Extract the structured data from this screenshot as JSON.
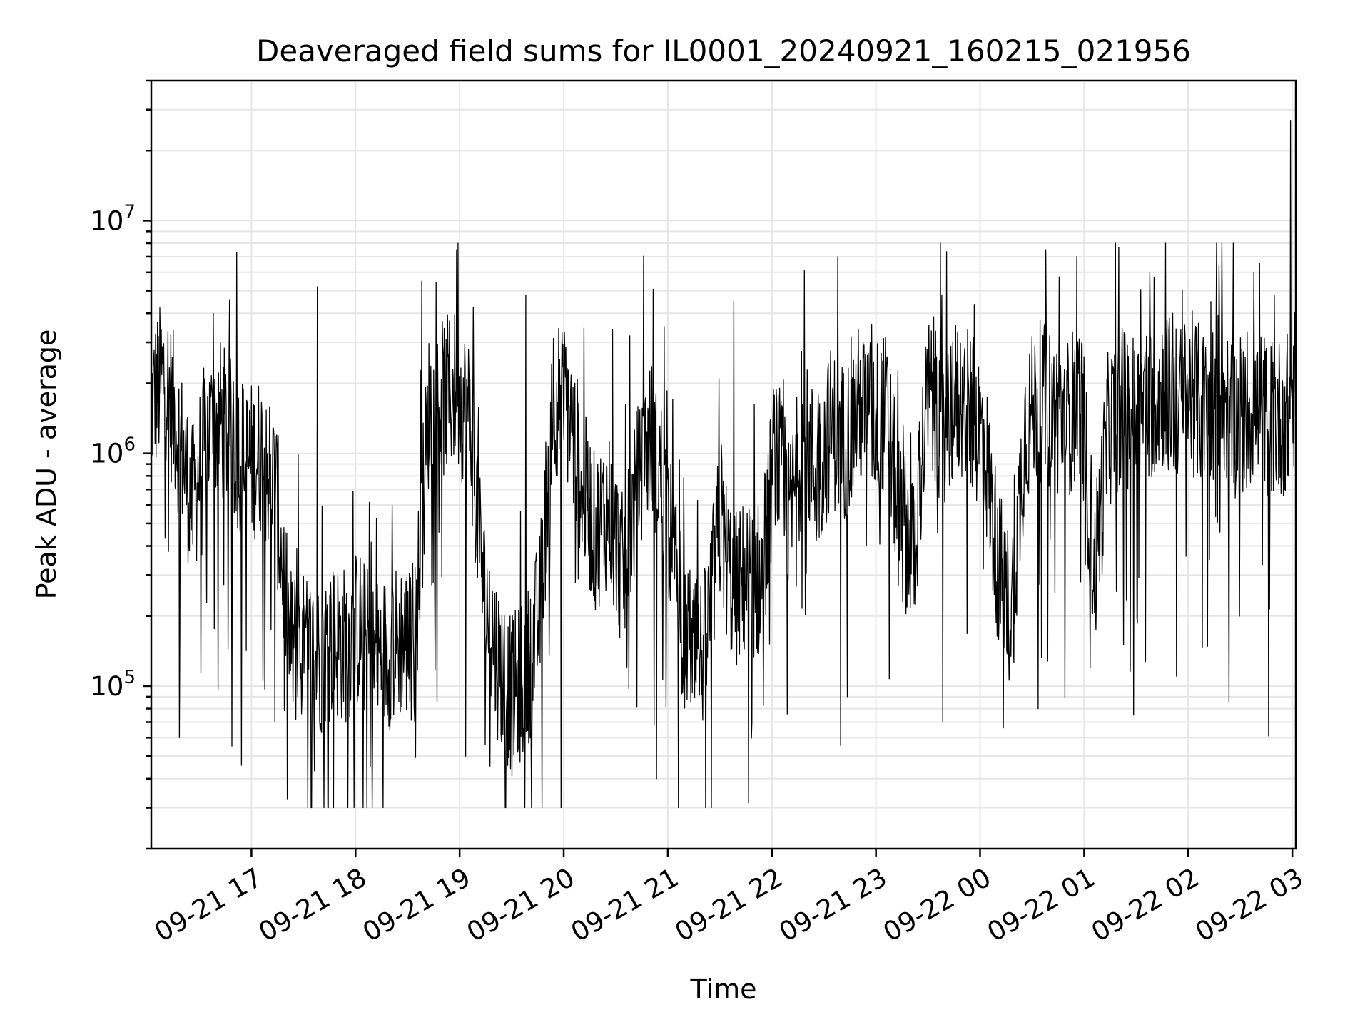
{
  "chart_data": {
    "type": "line",
    "title": "Deaveraged field sums for IL0001_20240921_160215_021956",
    "xlabel": "Time",
    "ylabel": "Peak ADU - average",
    "yscale": "log",
    "xlim": [
      "2024-09-21 16:02:15",
      "2024-09-22 03:02:00"
    ],
    "ylim": [
      20000,
      40000000
    ],
    "grid": true,
    "x_ticks": [
      {
        "value": "2024-09-21 17:00",
        "label": "09-21 17"
      },
      {
        "value": "2024-09-21 18:00",
        "label": "09-21 18"
      },
      {
        "value": "2024-09-21 19:00",
        "label": "09-21 19"
      },
      {
        "value": "2024-09-21 20:00",
        "label": "09-21 20"
      },
      {
        "value": "2024-09-21 21:00",
        "label": "09-21 21"
      },
      {
        "value": "2024-09-21 22:00",
        "label": "09-21 22"
      },
      {
        "value": "2024-09-21 23:00",
        "label": "09-21 23"
      },
      {
        "value": "2024-09-22 00:00",
        "label": "09-22 00"
      },
      {
        "value": "2024-09-22 01:00",
        "label": "09-22 01"
      },
      {
        "value": "2024-09-22 02:00",
        "label": "09-22 02"
      },
      {
        "value": "2024-09-22 03:00",
        "label": "09-22 03"
      }
    ],
    "y_ticks": [
      {
        "value": 100000,
        "base": "10",
        "exp": "5"
      },
      {
        "value": 1000000,
        "base": "10",
        "exp": "6"
      },
      {
        "value": 10000000,
        "base": "10",
        "exp": "7"
      }
    ],
    "series": [
      {
        "color": "#000000",
        "x": [
          "2024-09-21 16:02",
          "2024-09-21 16:10",
          "2024-09-21 16:18",
          "2024-09-21 16:26",
          "2024-09-21 16:34",
          "2024-09-21 16:42",
          "2024-09-21 16:50",
          "2024-09-21 16:58",
          "2024-09-21 17:06",
          "2024-09-21 17:14",
          "2024-09-21 17:22",
          "2024-09-21 17:30",
          "2024-09-21 17:38",
          "2024-09-21 17:46",
          "2024-09-21 17:54",
          "2024-09-21 18:02",
          "2024-09-21 18:10",
          "2024-09-21 18:18",
          "2024-09-21 18:26",
          "2024-09-21 18:34",
          "2024-09-21 18:42",
          "2024-09-21 18:50",
          "2024-09-21 18:58",
          "2024-09-21 19:06",
          "2024-09-21 19:14",
          "2024-09-21 19:22",
          "2024-09-21 19:30",
          "2024-09-21 19:38",
          "2024-09-21 19:46",
          "2024-09-21 19:54",
          "2024-09-21 20:02",
          "2024-09-21 20:10",
          "2024-09-21 20:18",
          "2024-09-21 20:26",
          "2024-09-21 20:34",
          "2024-09-21 20:42",
          "2024-09-21 20:50",
          "2024-09-21 20:58",
          "2024-09-21 21:06",
          "2024-09-21 21:14",
          "2024-09-21 21:22",
          "2024-09-21 21:30",
          "2024-09-21 21:38",
          "2024-09-21 21:46",
          "2024-09-21 21:54",
          "2024-09-21 22:02",
          "2024-09-21 22:10",
          "2024-09-21 22:18",
          "2024-09-21 22:26",
          "2024-09-21 22:34",
          "2024-09-21 22:42",
          "2024-09-21 22:50",
          "2024-09-21 22:58",
          "2024-09-21 23:06",
          "2024-09-21 23:14",
          "2024-09-21 23:22",
          "2024-09-21 23:30",
          "2024-09-21 23:38",
          "2024-09-21 23:46",
          "2024-09-21 23:54",
          "2024-09-22 00:02",
          "2024-09-22 00:10",
          "2024-09-22 00:18",
          "2024-09-22 00:26",
          "2024-09-22 00:34",
          "2024-09-22 00:42",
          "2024-09-22 00:50",
          "2024-09-22 00:58",
          "2024-09-22 01:06",
          "2024-09-22 01:14",
          "2024-09-22 01:22",
          "2024-09-22 01:30",
          "2024-09-22 01:38",
          "2024-09-22 01:46",
          "2024-09-22 01:54",
          "2024-09-22 02:02",
          "2024-09-22 02:10",
          "2024-09-22 02:18",
          "2024-09-22 02:26",
          "2024-09-22 02:34",
          "2024-09-22 02:42",
          "2024-09-22 02:50",
          "2024-09-22 02:58",
          "2024-09-22 03:02"
        ],
        "y": [
          1600000,
          2200000,
          1200000,
          600000,
          1200000,
          1400000,
          1100000,
          900000,
          1000000,
          700000,
          150000,
          140000,
          130000,
          160000,
          150000,
          180000,
          130000,
          140000,
          160000,
          150000,
          1500000,
          1700000,
          1900000,
          1400000,
          250000,
          130000,
          90000,
          110000,
          200000,
          1800000,
          1600000,
          800000,
          450000,
          600000,
          300000,
          700000,
          1200000,
          700000,
          250000,
          120000,
          150000,
          500000,
          250000,
          300000,
          280000,
          1100000,
          500000,
          1200000,
          800000,
          1300000,
          1100000,
          1600000,
          1400000,
          1500000,
          500000,
          400000,
          1800000,
          1300000,
          1700000,
          1500000,
          1200000,
          350000,
          200000,
          1300000,
          1700000,
          1500000,
          1400000,
          1800000,
          300000,
          1300000,
          1600000,
          1500000,
          1700000,
          1900000,
          1600000,
          1800000,
          1500000,
          1900000,
          1400000,
          1600000,
          1500000,
          1400000,
          1500000,
          2000000
        ],
        "peaks": [
          4000000,
          5200000,
          5500000,
          4800000,
          3200000,
          4500000,
          7000000,
          4800000,
          7500000,
          6000000,
          6000000,
          27000000
        ],
        "troughs": [
          60000,
          70000,
          45000,
          50000,
          30000,
          40000,
          70000,
          90000,
          70000,
          80000,
          75000,
          85000
        ]
      }
    ]
  }
}
